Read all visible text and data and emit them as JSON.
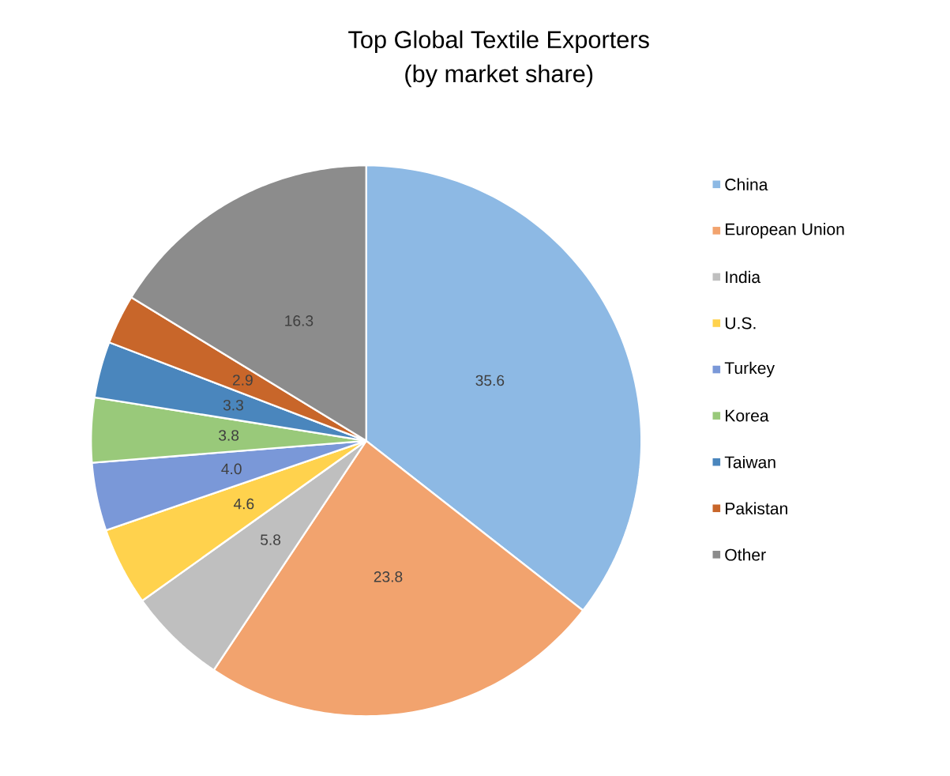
{
  "chart_data": {
    "type": "pie",
    "title": "Top Global Textile Exporters",
    "subtitle": "(by market share)",
    "categories": [
      "China",
      "European Union",
      "India",
      "U.S.",
      "Turkey",
      "Korea",
      "Taiwan",
      "Pakistan",
      "Other"
    ],
    "values": [
      35.6,
      23.8,
      5.8,
      4.6,
      4.0,
      3.8,
      3.3,
      2.9,
      16.3
    ],
    "colors": [
      "#8db9e4",
      "#f2a36e",
      "#bfbfbf",
      "#ffd24d",
      "#7a98d8",
      "#99c97a",
      "#4a86bd",
      "#c8662a",
      "#8c8c8c"
    ],
    "value_labels": [
      "35.6",
      "23.8",
      "5.8",
      "4.6",
      "4.0",
      "3.8",
      "3.3",
      "2.9",
      "16.3"
    ],
    "legend": "right"
  }
}
